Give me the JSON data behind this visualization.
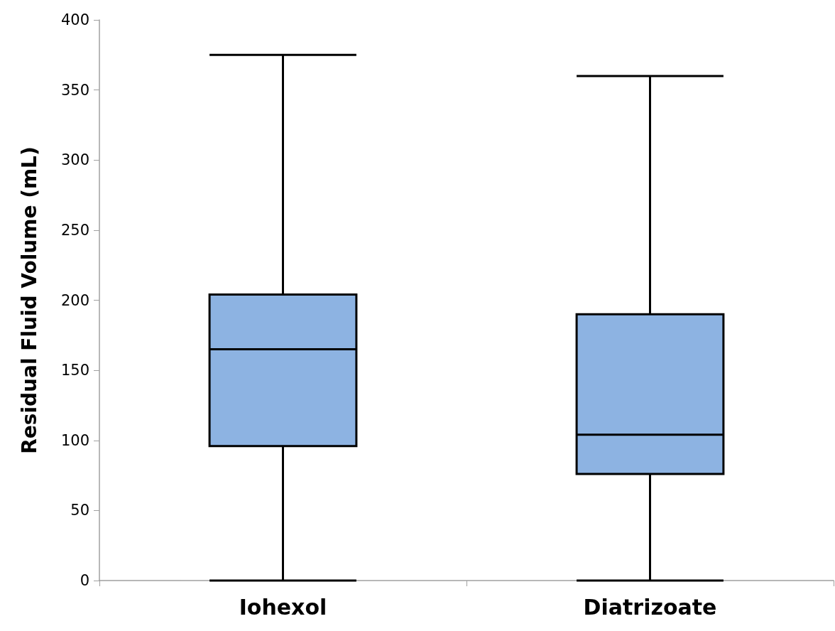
{
  "chart_data": {
    "type": "box",
    "ylabel": "Residual Fluid Volume (mL)",
    "categories": [
      "Iohexol",
      "Diatrizoate"
    ],
    "series": [
      {
        "color": "#8db3e2",
        "boxes": [
          {
            "low": 0,
            "q1": 96,
            "median": 165,
            "q3": 204,
            "high": 375
          },
          {
            "low": 0,
            "q1": 76,
            "median": 104,
            "q3": 190,
            "high": 360
          }
        ]
      }
    ],
    "ylim": [
      0,
      400
    ],
    "yticks": [
      0,
      50,
      100,
      150,
      200,
      250,
      300,
      350,
      400
    ],
    "grid": false
  }
}
